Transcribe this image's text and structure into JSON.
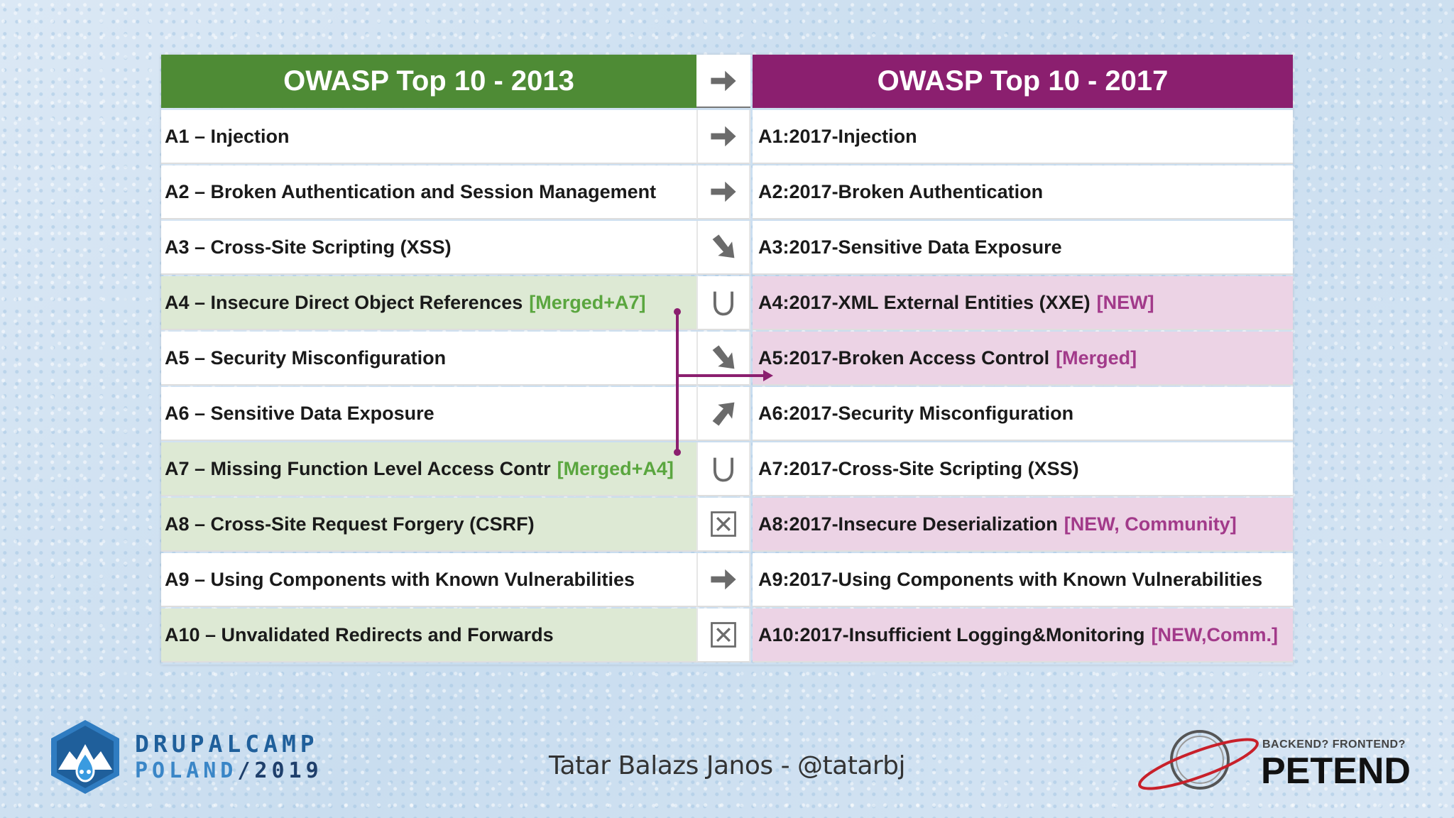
{
  "table": {
    "header_left": "OWASP Top 10 - 2013",
    "header_right": "OWASP Top 10 - 2017",
    "header_icon": "arrow-right-icon",
    "rows": [
      {
        "left": "A1 – Injection",
        "left_tag": "",
        "icon": "arrow-right-icon",
        "right": "A1:2017-Injection",
        "right_tag": "",
        "left_hl": false,
        "right_hl": false
      },
      {
        "left": "A2 – Broken Authentication and Session Management",
        "left_tag": "",
        "icon": "arrow-right-icon",
        "right": "A2:2017-Broken Authentication",
        "right_tag": "",
        "left_hl": false,
        "right_hl": false
      },
      {
        "left": "A3 – Cross-Site Scripting (XSS)",
        "left_tag": "",
        "icon": "arrow-down-right-icon",
        "right": "A3:2017-Sensitive Data Exposure",
        "right_tag": "",
        "left_hl": false,
        "right_hl": false
      },
      {
        "left": "A4 – Insecure Direct Object References",
        "left_tag": "[Merged+A7]",
        "icon": "union-icon",
        "right": "A4:2017-XML External Entities (XXE)",
        "right_tag": "[NEW]",
        "left_hl": true,
        "right_hl": true
      },
      {
        "left": "A5 – Security Misconfiguration",
        "left_tag": "",
        "icon": "arrow-down-right-icon",
        "right": "A5:2017-Broken Access Control",
        "right_tag": "[Merged]",
        "left_hl": false,
        "right_hl": true
      },
      {
        "left": "A6 – Sensitive Data Exposure",
        "left_tag": "",
        "icon": "arrow-up-right-icon",
        "right": "A6:2017-Security Misconfiguration",
        "right_tag": "",
        "left_hl": false,
        "right_hl": false
      },
      {
        "left": "A7 – Missing Function Level Access Contr",
        "left_tag": "[Merged+A4]",
        "icon": "union-icon",
        "right": "A7:2017-Cross-Site Scripting (XSS)",
        "right_tag": "",
        "left_hl": true,
        "right_hl": false
      },
      {
        "left": "A8 – Cross-Site Request Forgery (CSRF)",
        "left_tag": "",
        "icon": "removed-box-icon",
        "right": "A8:2017-Insecure Deserialization",
        "right_tag": "[NEW, Community]",
        "left_hl": true,
        "right_hl": true
      },
      {
        "left": "A9 – Using Components with Known Vulnerabilities",
        "left_tag": "",
        "icon": "arrow-right-icon",
        "right": "A9:2017-Using Components with Known Vulnerabilities",
        "right_tag": "",
        "left_hl": false,
        "right_hl": false
      },
      {
        "left": "A10 – Unvalidated Redirects and Forwards",
        "left_tag": "",
        "icon": "removed-box-icon",
        "right": "A10:2017-Insufficient Logging&Monitoring",
        "right_tag": "[NEW,Comm.]",
        "left_hl": true,
        "right_hl": true
      }
    ]
  },
  "footer": {
    "presenter": "Tatar Balazs Janos - @tatarbj",
    "drupal_line1": "DRUPALCAMP",
    "drupal_line2_a": "POLAND",
    "drupal_line2_b": "/2019",
    "petend_tagline": "BACKEND? FRONTEND?",
    "petend_name": "PETEND"
  },
  "colors": {
    "green_header": "#4e8b35",
    "purple_header": "#8b1f6f",
    "green_tag": "#5aa63f",
    "purple_tag": "#a23a8a"
  }
}
